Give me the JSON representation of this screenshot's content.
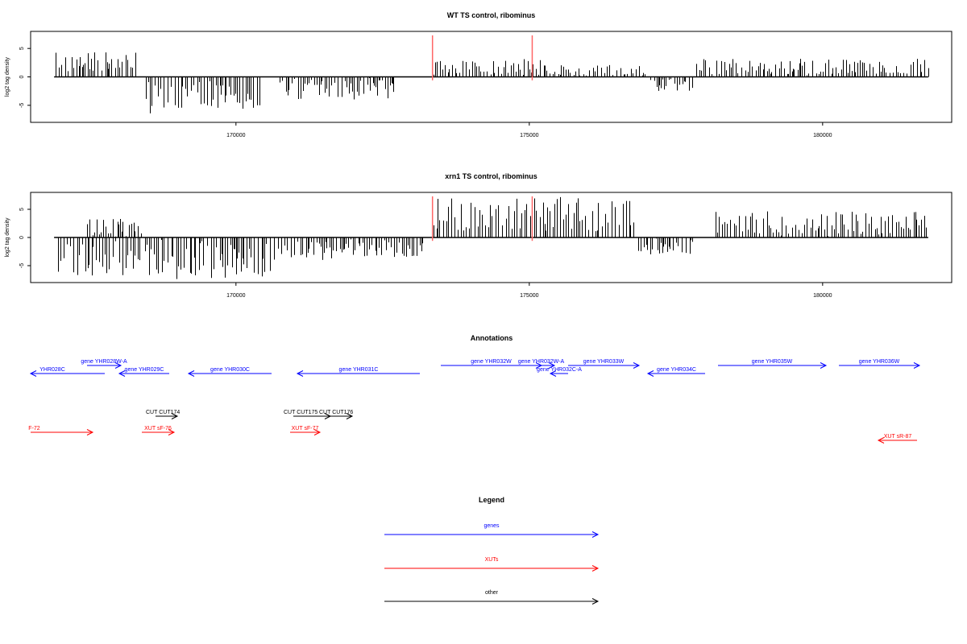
{
  "colors": {
    "gene": "#0000ff",
    "xut": "#ff0000",
    "other": "#000000",
    "marker": "#ff6666",
    "axis": "#000000"
  },
  "chart_data": [
    {
      "type": "bar",
      "title": "WT TS control, ribominus",
      "ylabel": "log2 tag density",
      "xlim": [
        166500,
        182200
      ],
      "ylim": [
        -8,
        8
      ],
      "xticks": [
        170000,
        175000,
        180000
      ],
      "yticks": [
        -5,
        0,
        5
      ],
      "markers_x": [
        173350,
        175050
      ],
      "coverage_x": [
        166900,
        181800
      ],
      "segments": [
        {
          "x0": 166900,
          "x1": 168300,
          "amp": 4.5,
          "seed": 3
        },
        {
          "x0": 168400,
          "x1": 170400,
          "amp": -6.5,
          "seed": 5
        },
        {
          "x0": 170700,
          "x1": 172700,
          "amp": -4.0,
          "seed": 7
        },
        {
          "x0": 173300,
          "x1": 175200,
          "amp": 3.2,
          "seed": 11
        },
        {
          "x0": 175200,
          "x1": 177000,
          "amp": 2.2,
          "seed": 13
        },
        {
          "x0": 177000,
          "x1": 177800,
          "amp": -2.6,
          "seed": 17
        },
        {
          "x0": 177800,
          "x1": 181800,
          "amp": 3.2,
          "seed": 19
        }
      ]
    },
    {
      "type": "bar",
      "title": "xrn1 TS control, ribominus",
      "ylabel": "log2 tag density",
      "xlim": [
        166500,
        182200
      ],
      "ylim": [
        -8,
        8
      ],
      "xticks": [
        170000,
        175000,
        180000
      ],
      "yticks": [
        -5,
        0,
        5
      ],
      "markers_x": [
        173350,
        175050
      ],
      "coverage_x": [
        166900,
        181800
      ],
      "segments": [
        {
          "x0": 166900,
          "x1": 168400,
          "amp": -7.0,
          "seed": 23
        },
        {
          "x0": 167400,
          "x1": 168400,
          "amp": 3.5,
          "seed": 29
        },
        {
          "x0": 168400,
          "x1": 170600,
          "amp": -7.5,
          "seed": 31
        },
        {
          "x0": 170600,
          "x1": 173200,
          "amp": -4.0,
          "seed": 37
        },
        {
          "x0": 173300,
          "x1": 176800,
          "amp": 7.5,
          "seed": 41
        },
        {
          "x0": 176800,
          "x1": 177800,
          "amp": -3.0,
          "seed": 43
        },
        {
          "x0": 178100,
          "x1": 181800,
          "amp": 4.8,
          "seed": 47
        }
      ]
    }
  ],
  "annotations": {
    "title": "Annotations",
    "genes": [
      {
        "label": "YHR028C",
        "dir": "left",
        "lane": 1,
        "x0": 0,
        "x1": 130
      },
      {
        "label": "gene YHR028W-A",
        "dir": "right",
        "lane": 0,
        "x0": 108,
        "x1": 150
      },
      {
        "label": "gene YHR029C",
        "dir": "left",
        "lane": 1,
        "x0": 148,
        "x1": 210
      },
      {
        "label": "gene YHR030C",
        "dir": "left",
        "lane": 1,
        "x0": 234,
        "x1": 337
      },
      {
        "label": "gene YHR031C",
        "dir": "left",
        "lane": 1,
        "x0": 369,
        "x1": 521
      },
      {
        "label": "gene YHR032W",
        "dir": "right",
        "lane": 0,
        "x0": 547,
        "x1": 672
      },
      {
        "label": "gene YHR032W-A",
        "dir": "right",
        "lane": 0,
        "x0": 655,
        "x1": 688
      },
      {
        "label": "gene YHR032C-A",
        "dir": "left",
        "lane": 1,
        "x0": 683,
        "x1": 705
      },
      {
        "label": "gene YHR033W",
        "dir": "right",
        "lane": 0,
        "x0": 705,
        "x1": 793
      },
      {
        "label": "gene YHR034C",
        "dir": "left",
        "lane": 1,
        "x0": 804,
        "x1": 875
      },
      {
        "label": "gene YHR035W",
        "dir": "right",
        "lane": 0,
        "x0": 891,
        "x1": 1025
      },
      {
        "label": "gene YHR036W",
        "dir": "right",
        "lane": 0,
        "x0": 1041,
        "x1": 1141
      }
    ],
    "cuts": [
      {
        "label": "CUT CUT174",
        "dir": "right",
        "x0": 193,
        "x1": 220
      },
      {
        "label": "CUT CUT175",
        "dir": "right",
        "x0": 364,
        "x1": 410
      },
      {
        "label": "CUT CUT176",
        "dir": "right",
        "x0": 408,
        "x1": 437
      }
    ],
    "xuts": [
      {
        "label": "F-72",
        "dir": "right",
        "lane": 0,
        "x0": 0,
        "x1": 115
      },
      {
        "label": "XUT sF-76",
        "dir": "right",
        "lane": 0,
        "x0": 176,
        "x1": 216
      },
      {
        "label": "XUT sF-77",
        "dir": "right",
        "lane": 0,
        "x0": 360,
        "x1": 397
      },
      {
        "label": "XUT sR-87",
        "dir": "left",
        "lane": 1,
        "x0": 1090,
        "x1": 1138
      }
    ]
  },
  "legend": {
    "title": "Legend",
    "items": [
      {
        "label": "genes",
        "kind": "gene"
      },
      {
        "label": "XUTs",
        "kind": "xut"
      },
      {
        "label": "other",
        "kind": "other"
      }
    ]
  }
}
